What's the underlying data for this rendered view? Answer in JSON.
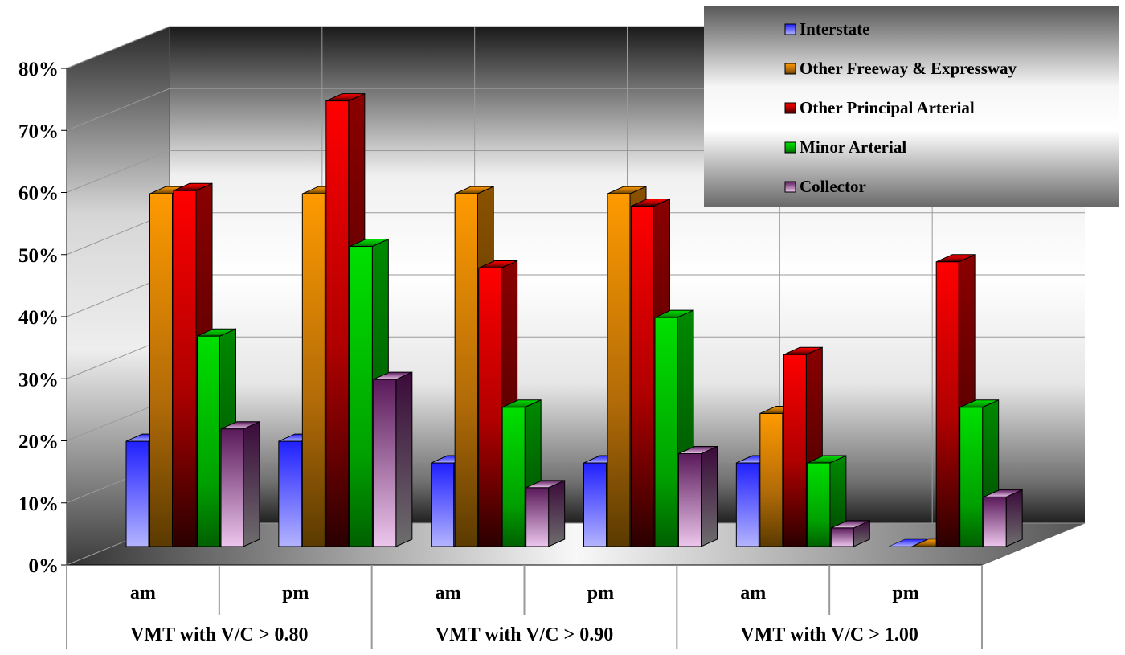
{
  "chart_data": {
    "type": "bar",
    "title": "",
    "xlabel": "",
    "ylabel": "",
    "ylim": [
      0,
      80
    ],
    "y_ticks": [
      "0%",
      "10%",
      "20%",
      "30%",
      "40%",
      "50%",
      "60%",
      "70%",
      "80%"
    ],
    "categories": [
      "am",
      "pm",
      "am",
      "pm",
      "am",
      "pm"
    ],
    "category_groups": [
      {
        "label": "VMT with V/C > 0.80",
        "span": 2
      },
      {
        "label": "VMT with V/C > 0.90",
        "span": 2
      },
      {
        "label": "VMT with V/C > 1.00",
        "span": 2
      }
    ],
    "series": [
      {
        "name": "Interstate",
        "values": [
          17,
          17,
          13.5,
          13.5,
          13.5,
          0
        ]
      },
      {
        "name": "Other Freeway & Expressway",
        "values": [
          57,
          57,
          57,
          57,
          21.5,
          0
        ]
      },
      {
        "name": "Other Principal Arterial",
        "values": [
          57.5,
          72,
          45,
          55,
          31,
          46
        ]
      },
      {
        "name": "Minor Arterial",
        "values": [
          34,
          48.5,
          22.5,
          37,
          13.5,
          22.5
        ]
      },
      {
        "name": "Collector",
        "values": [
          19,
          27,
          9.5,
          15,
          3,
          8
        ]
      }
    ],
    "colors": {
      "Interstate": "#3a3aff",
      "Other Freeway & Expressway": "#ff9900",
      "Other Principal Arterial": "#ff0000",
      "Minor Arterial": "#00dd00",
      "Collector": "#7a2a7a"
    },
    "legend_position": "top-right",
    "grid": true,
    "style": "3d-clustered-column"
  }
}
